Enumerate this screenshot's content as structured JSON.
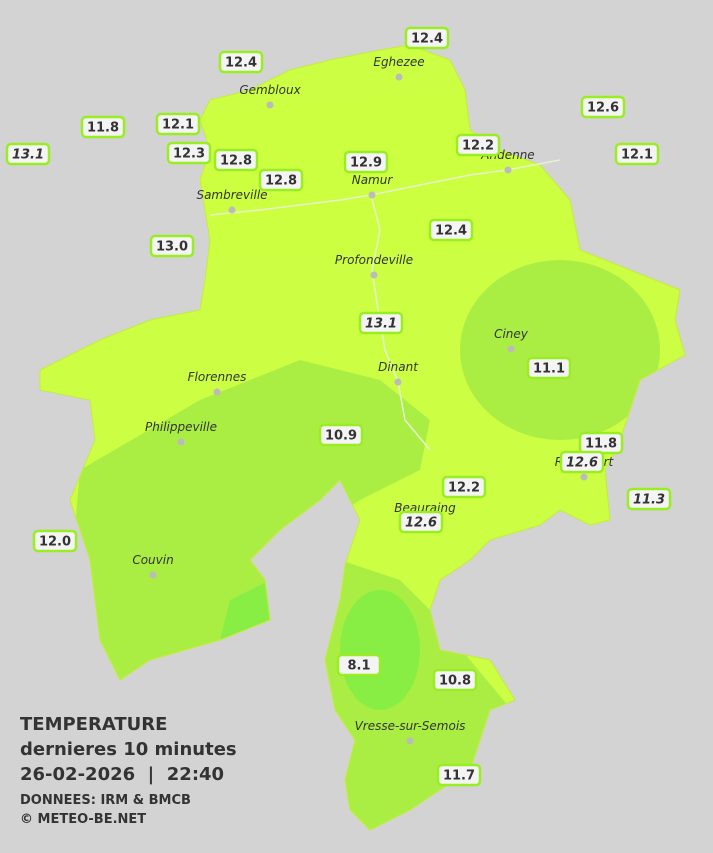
{
  "map": {
    "title": [
      "TEMPERATURE",
      "dernieres 10 minutes",
      "26-02-2026  |  22:40"
    ],
    "credits": [
      "DONNEES: IRM & BMCB",
      "© METEO-BE.NET"
    ],
    "cities": [
      "Eghezee",
      "Gembloux",
      "Andenne",
      "Namur",
      "Sambreville",
      "Profondeville",
      "Ciney",
      "Dinant",
      "Florennes",
      "Philippeville",
      "Rochefort",
      "Beauraing",
      "Couvin",
      "Vresse-sur-Semois"
    ],
    "stations": [
      "12.4",
      "12.4",
      "12.6",
      "11.8",
      "12.1",
      "13.1",
      "12.3",
      "12.8",
      "12.9",
      "12.2",
      "12.1",
      "12.8",
      "13.0",
      "12.4",
      "13.1",
      "11.1",
      "10.9",
      "11.8",
      "12.6",
      "11.3",
      "12.2",
      "12.6",
      "12.0",
      "8.1",
      "10.8",
      "11.7"
    ]
  }
}
